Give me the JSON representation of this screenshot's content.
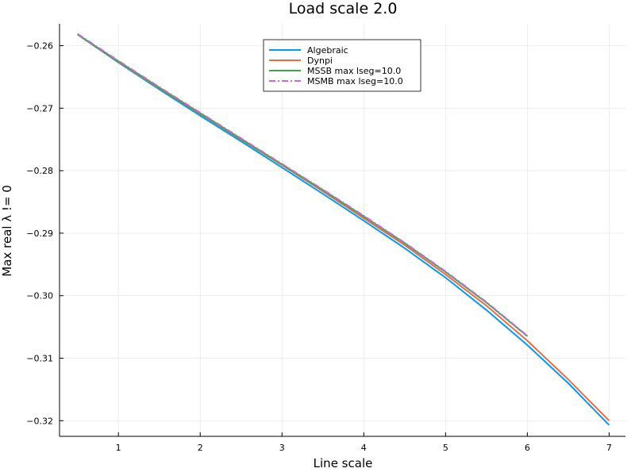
{
  "chart_data": {
    "type": "line",
    "title": "Load scale 2.0",
    "xlabel": "Line scale",
    "ylabel": "Max real λ != 0",
    "xlim": [
      0.28,
      7.2
    ],
    "ylim": [
      -0.3225,
      -0.2565
    ],
    "xticks": [
      1,
      2,
      3,
      4,
      5,
      6,
      7
    ],
    "xtick_labels": [
      "1",
      "2",
      "3",
      "4",
      "5",
      "6",
      "7"
    ],
    "yticks": [
      -0.32,
      -0.31,
      -0.3,
      -0.29,
      -0.28,
      -0.27,
      -0.26
    ],
    "ytick_labels": [
      "−0.32",
      "−0.31",
      "−0.30",
      "−0.29",
      "−0.28",
      "−0.27",
      "−0.26"
    ],
    "grid": true,
    "legend_position": "top-center",
    "series": [
      {
        "name": "Algebraic",
        "color": "#009af9",
        "dash": "solid",
        "x": [
          0.5,
          1,
          1.5,
          2,
          2.5,
          3,
          3.5,
          4,
          4.5,
          5,
          5.5,
          6,
          6.5,
          7
        ],
        "y": [
          -0.2582,
          -0.2627,
          -0.267,
          -0.2712,
          -0.2753,
          -0.2795,
          -0.2837,
          -0.288,
          -0.2924,
          -0.2971,
          -0.3023,
          -0.3079,
          -0.314,
          -0.3207
        ]
      },
      {
        "name": "Dynpi",
        "color": "#e26f46",
        "dash": "solid",
        "x": [
          0.5,
          1,
          1.5,
          2,
          2.5,
          3,
          3.5,
          4,
          4.5,
          5,
          5.5,
          6,
          6.5,
          7
        ],
        "y": [
          -0.2582,
          -0.2626,
          -0.2668,
          -0.2709,
          -0.275,
          -0.2791,
          -0.2833,
          -0.2876,
          -0.2919,
          -0.2966,
          -0.3016,
          -0.3072,
          -0.3134,
          -0.32
        ]
      },
      {
        "name": "MSSB max lseg=10.0",
        "color": "#3da44d",
        "dash": "solid",
        "x": [
          0.5,
          1,
          1.5,
          2,
          2.5,
          3,
          3.5,
          4,
          4.5,
          5,
          5.5,
          6
        ],
        "y": [
          -0.2582,
          -0.2625,
          -0.2667,
          -0.2708,
          -0.2749,
          -0.279,
          -0.2831,
          -0.2873,
          -0.2916,
          -0.2962,
          -0.3011,
          -0.3065
        ]
      },
      {
        "name": "MSMB max lseg=10.0",
        "color": "#c271d2",
        "dash": "dashdot",
        "x": [
          0.5,
          1,
          1.5,
          2,
          2.5,
          3,
          3.5,
          4,
          4.5,
          5,
          5.5,
          6
        ],
        "y": [
          -0.2581,
          -0.2624,
          -0.2666,
          -0.2707,
          -0.2748,
          -0.2789,
          -0.283,
          -0.2872,
          -0.2915,
          -0.2961,
          -0.301,
          -0.3064
        ]
      }
    ]
  }
}
